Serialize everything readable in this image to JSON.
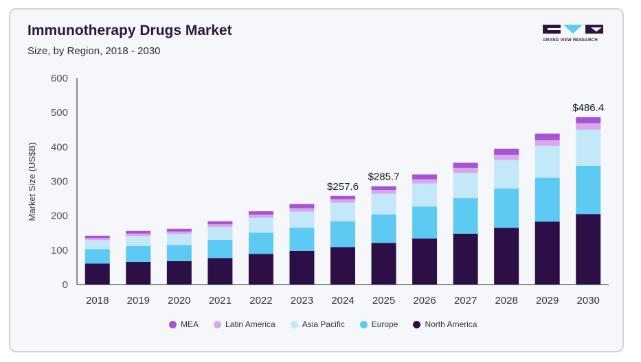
{
  "header": {
    "title": "Immunotherapy Drugs Market",
    "subtitle": "Size, by Region, 2018 - 2030",
    "logo_text": "GRAND VIEW RESEARCH"
  },
  "colors": {
    "North America": "#2d0f47",
    "Europe": "#5ccaf2",
    "Asia Pacific": "#c2e8fa",
    "Latin America": "#d8a8ea",
    "MEA": "#a852d6",
    "logo": "#2a1740"
  },
  "chart_data": {
    "type": "bar",
    "stacked": true,
    "title": "Immunotherapy Drugs Market",
    "subtitle": "Size, by Region, 2018 - 2030",
    "xlabel": "",
    "ylabel": "Market Size (US$B)",
    "ylim": [
      0,
      600
    ],
    "yticks": [
      "0",
      "100",
      "200",
      "300",
      "400",
      "500",
      "600"
    ],
    "grid": false,
    "legend_position": "bottom",
    "categories": [
      "2018",
      "2019",
      "2020",
      "2021",
      "2022",
      "2023",
      "2024",
      "2025",
      "2026",
      "2027",
      "2028",
      "2029",
      "2030"
    ],
    "series": [
      {
        "name": "North America",
        "values": [
          61,
          66,
          68,
          77,
          89,
          98,
          109,
          121,
          134,
          148,
          165,
          183,
          205
        ]
      },
      {
        "name": "Europe",
        "values": [
          42,
          46,
          47,
          53,
          62,
          67,
          75,
          83,
          93,
          103,
          114,
          127,
          140
        ]
      },
      {
        "name": "Asia Pacific",
        "values": [
          26,
          29,
          32,
          37,
          43,
          47,
          54,
          60,
          67,
          74,
          83,
          93,
          105
        ]
      },
      {
        "name": "Latin America",
        "values": [
          6,
          7,
          7,
          8,
          9,
          10,
          10,
          11,
          12,
          14,
          15,
          17,
          19
        ]
      },
      {
        "name": "MEA",
        "values": [
          7,
          8,
          8,
          9,
          10,
          12,
          9.6,
          10.7,
          14,
          15,
          18,
          19,
          17.4
        ]
      }
    ],
    "data_labels": [
      {
        "category": "2024",
        "text": "$257.6"
      },
      {
        "category": "2025",
        "text": "$285.7"
      },
      {
        "category": "2030",
        "text": "$486.4"
      }
    ]
  },
  "legend_order": [
    "MEA",
    "Latin America",
    "Asia Pacific",
    "Europe",
    "North America"
  ]
}
